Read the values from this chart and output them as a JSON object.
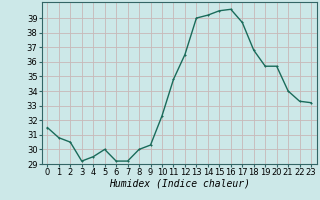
{
  "x": [
    0,
    1,
    2,
    3,
    4,
    5,
    6,
    7,
    8,
    9,
    10,
    11,
    12,
    13,
    14,
    15,
    16,
    17,
    18,
    19,
    20,
    21,
    22,
    23
  ],
  "y": [
    31.5,
    30.8,
    30.5,
    29.2,
    29.5,
    30.0,
    29.2,
    29.2,
    30.0,
    30.3,
    32.3,
    34.8,
    36.5,
    39.0,
    39.2,
    39.5,
    39.6,
    38.7,
    36.8,
    35.7,
    35.7,
    34.0,
    33.3,
    33.2
  ],
  "xlabel": "Humidex (Indice chaleur)",
  "background_color": "#cce8e8",
  "grid_color_major": "#c8b8b8",
  "grid_color_bg": "#cce8e8",
  "line_color": "#1a6b5a",
  "marker_color": "#1a6b5a",
  "ylim_min": 29,
  "ylim_max": 40,
  "xlim_min": -0.5,
  "xlim_max": 23.5,
  "yticks": [
    29,
    30,
    31,
    32,
    33,
    34,
    35,
    36,
    37,
    38,
    39
  ],
  "xticks": [
    0,
    1,
    2,
    3,
    4,
    5,
    6,
    7,
    8,
    9,
    10,
    11,
    12,
    13,
    14,
    15,
    16,
    17,
    18,
    19,
    20,
    21,
    22,
    23
  ],
  "xtick_labels": [
    "0",
    "1",
    "2",
    "3",
    "4",
    "5",
    "6",
    "7",
    "8",
    "9",
    "10",
    "11",
    "12",
    "13",
    "14",
    "15",
    "16",
    "17",
    "18",
    "19",
    "20",
    "21",
    "22",
    "23"
  ],
  "xlabel_fontsize": 7,
  "tick_fontsize": 6,
  "line_width": 1.0,
  "marker_size": 2.0
}
